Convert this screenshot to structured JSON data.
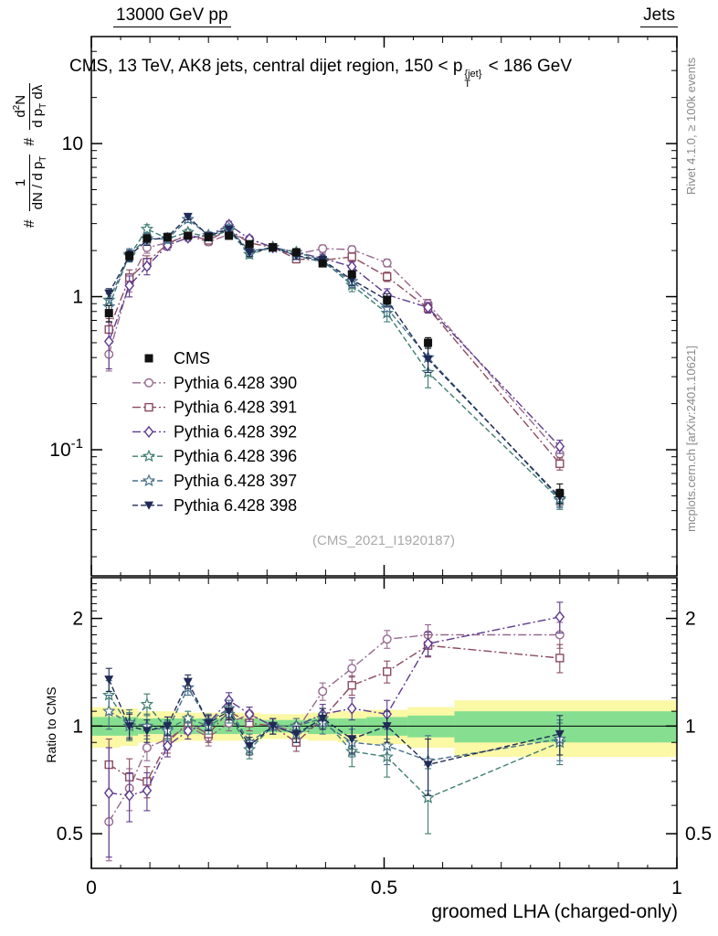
{
  "header": {
    "left": "13000 GeV pp",
    "right": "Jets"
  },
  "title": {
    "pre": "CMS, 13 TeV, AK8 jets, central dijet region, 150 < ",
    "base": "p",
    "sup": "{jet}",
    "sub": "T",
    "post": " < 186 GeV"
  },
  "watermark": "(CMS_2021_I1920187)",
  "side_notes": {
    "top_right": "Rivet 4.1.0, ≥ 100k events",
    "bottom_right": "mcplots.cern.ch [arXiv:2401.10621]"
  },
  "ylabel_main": {
    "hash1": "#",
    "frac1_num": "1",
    "frac1_den_a": "dN / d p",
    "frac1_den_sub": "T",
    "hash2": "#",
    "frac2_num_a": "d",
    "frac2_num_sup": "2",
    "frac2_num_b": "N",
    "frac2_den_a": "d p",
    "frac2_den_sub": "T",
    "frac2_den_b": " dλ"
  },
  "ylabel_ratio": "Ratio to CMS",
  "xlabel": "groomed LHA (charged-only)",
  "chart_data": {
    "type": "line",
    "title": "CMS, 13 TeV, AK8 jets, central dijet region, 150 < pT^{jet} < 186 GeV",
    "xlabel": "groomed LHA (charged-only)",
    "ylabel": "1/(dN/dpT) d²N/(dpT dλ)",
    "ylabel_ratio": "Ratio to CMS",
    "yscale": "log",
    "grid": false,
    "legend_position": "inside-left-middle",
    "xlim": [
      0,
      1
    ],
    "ylim_main": [
      0.015,
      50
    ],
    "ylim_ratio": [
      0.4,
      2.6
    ],
    "axes": {
      "x_ticks": [
        {
          "v": 0,
          "label": "0"
        },
        {
          "v": 0.5,
          "label": "0.5"
        },
        {
          "v": 1,
          "label": "1"
        }
      ],
      "main_y_ticks": [
        {
          "v": 10,
          "label": "10"
        },
        {
          "v": 1,
          "label": "1"
        },
        {
          "v": 0.1,
          "label": "10",
          "sup": "-1"
        }
      ],
      "ratio_y_ticks": [
        {
          "v": 2,
          "label": "2"
        },
        {
          "v": 1,
          "label": "1"
        },
        {
          "v": 0.5,
          "label": "0.5"
        }
      ]
    },
    "x": [
      0.03,
      0.065,
      0.095,
      0.13,
      0.165,
      0.2,
      0.235,
      0.27,
      0.31,
      0.35,
      0.395,
      0.445,
      0.505,
      0.575,
      0.8
    ],
    "reference": {
      "label": "CMS",
      "color": "#111111",
      "marker": "square-filled",
      "values": [
        0.78,
        1.85,
        2.4,
        2.45,
        2.5,
        2.45,
        2.5,
        2.2,
        2.1,
        1.95,
        1.65,
        1.4,
        0.95,
        0.5,
        0.052
      ],
      "err_rel": [
        0.12,
        0.06,
        0.05,
        0.04,
        0.04,
        0.04,
        0.04,
        0.04,
        0.04,
        0.04,
        0.05,
        0.05,
        0.06,
        0.08,
        0.15
      ]
    },
    "series": [
      {
        "label": "Pythia 6.428 390",
        "color": "#96688e",
        "dash": "9,3,2,3",
        "marker": "circle-open",
        "values": [
          0.42,
          1.24,
          2.09,
          2.25,
          2.5,
          2.28,
          2.55,
          2.38,
          2.1,
          1.89,
          2.06,
          2.03,
          1.66,
          0.9,
          0.094
        ],
        "ratios": [
          0.54,
          0.67,
          0.87,
          0.92,
          1.0,
          0.93,
          1.02,
          1.08,
          1.0,
          0.97,
          1.25,
          1.45,
          1.75,
          1.8,
          1.8
        ],
        "ratio_err": [
          0.12,
          0.09,
          0.07,
          0.06,
          0.05,
          0.05,
          0.05,
          0.05,
          0.05,
          0.05,
          0.07,
          0.08,
          0.1,
          0.12,
          0.15
        ]
      },
      {
        "label": "Pythia 6.428 391",
        "color": "#8c4a5e",
        "dash": "9,3,2,3",
        "marker": "square-open",
        "values": [
          0.61,
          1.33,
          1.68,
          2.21,
          2.55,
          2.33,
          2.75,
          2.24,
          2.1,
          1.76,
          1.73,
          1.82,
          1.35,
          0.84,
          0.081
        ],
        "ratios": [
          0.78,
          0.72,
          0.7,
          0.9,
          1.02,
          0.95,
          1.1,
          1.02,
          1.0,
          0.9,
          1.05,
          1.3,
          1.42,
          1.68,
          1.55
        ],
        "ratio_err": [
          0.14,
          0.09,
          0.07,
          0.06,
          0.05,
          0.05,
          0.05,
          0.05,
          0.05,
          0.05,
          0.07,
          0.08,
          0.1,
          0.12,
          0.14
        ]
      },
      {
        "label": "Pythia 6.428 392",
        "color": "#5e3a8f",
        "dash": "9,3,2,3",
        "marker": "diamond-open",
        "values": [
          0.51,
          1.18,
          1.58,
          2.16,
          2.43,
          2.5,
          2.95,
          2.38,
          2.1,
          1.95,
          1.78,
          1.57,
          1.03,
          0.85,
          0.105
        ],
        "ratios": [
          0.65,
          0.64,
          0.66,
          0.88,
          0.97,
          1.02,
          1.18,
          1.08,
          1.0,
          1.0,
          1.08,
          1.12,
          1.08,
          1.7,
          2.02
        ],
        "ratio_err": [
          0.22,
          0.1,
          0.08,
          0.06,
          0.05,
          0.05,
          0.06,
          0.05,
          0.05,
          0.05,
          0.07,
          0.08,
          0.1,
          0.13,
          0.2
        ]
      },
      {
        "label": "Pythia 6.428 396",
        "color": "#3f7d72",
        "dash": "6,3",
        "marker": "star-open",
        "values": [
          0.95,
          1.85,
          2.76,
          2.4,
          2.63,
          2.45,
          2.7,
          1.89,
          2.1,
          1.95,
          1.73,
          1.19,
          0.78,
          0.32,
          0.047
        ],
        "ratios": [
          1.22,
          1.0,
          1.15,
          0.98,
          1.05,
          1.0,
          1.08,
          0.86,
          1.0,
          1.0,
          1.05,
          0.85,
          0.82,
          0.63,
          0.9
        ],
        "ratio_err": [
          0.12,
          0.09,
          0.08,
          0.06,
          0.05,
          0.05,
          0.06,
          0.05,
          0.05,
          0.05,
          0.07,
          0.08,
          0.1,
          0.13,
          0.12
        ]
      },
      {
        "label": "Pythia 6.428 397",
        "color": "#47708a",
        "dash": "6,3",
        "marker": "star-open",
        "values": [
          0.86,
          1.89,
          2.4,
          2.38,
          3.2,
          2.52,
          2.8,
          1.98,
          2.1,
          1.85,
          1.68,
          1.26,
          0.84,
          0.4,
          0.048
        ],
        "ratios": [
          1.1,
          1.02,
          1.0,
          0.97,
          1.28,
          1.03,
          1.12,
          0.9,
          1.0,
          0.95,
          1.02,
          0.9,
          0.88,
          0.8,
          0.92
        ],
        "ratio_err": [
          0.12,
          0.09,
          0.08,
          0.06,
          0.06,
          0.05,
          0.06,
          0.05,
          0.05,
          0.05,
          0.07,
          0.08,
          0.1,
          0.14,
          0.12
        ]
      },
      {
        "label": "Pythia 6.428 398",
        "color": "#202a56",
        "dash": "6,3",
        "marker": "triangle-down-filled",
        "values": [
          1.05,
          1.85,
          2.33,
          2.45,
          3.33,
          2.5,
          2.75,
          1.94,
          2.1,
          1.85,
          1.73,
          1.29,
          0.95,
          0.39,
          0.049
        ],
        "ratios": [
          1.35,
          1.0,
          0.97,
          1.0,
          1.33,
          1.02,
          1.1,
          0.88,
          1.0,
          0.95,
          1.05,
          0.92,
          1.0,
          0.78,
          0.95
        ],
        "ratio_err": [
          0.1,
          0.08,
          0.07,
          0.06,
          0.06,
          0.05,
          0.06,
          0.05,
          0.05,
          0.05,
          0.07,
          0.08,
          0.1,
          0.14,
          0.12
        ]
      }
    ],
    "band": {
      "bin_edges": [
        0.0,
        0.05,
        0.08,
        0.11,
        0.15,
        0.18,
        0.22,
        0.25,
        0.29,
        0.33,
        0.37,
        0.42,
        0.47,
        0.54,
        0.62,
        1.0
      ],
      "yellow_half": [
        0.13,
        0.12,
        0.1,
        0.1,
        0.09,
        0.09,
        0.09,
        0.09,
        0.08,
        0.08,
        0.09,
        0.1,
        0.11,
        0.13,
        0.18
      ],
      "green_half": [
        0.06,
        0.06,
        0.05,
        0.05,
        0.05,
        0.05,
        0.05,
        0.05,
        0.04,
        0.04,
        0.05,
        0.05,
        0.06,
        0.07,
        0.1
      ],
      "colors": {
        "yellow": "#fbf8a6",
        "green": "#86df90"
      }
    }
  }
}
